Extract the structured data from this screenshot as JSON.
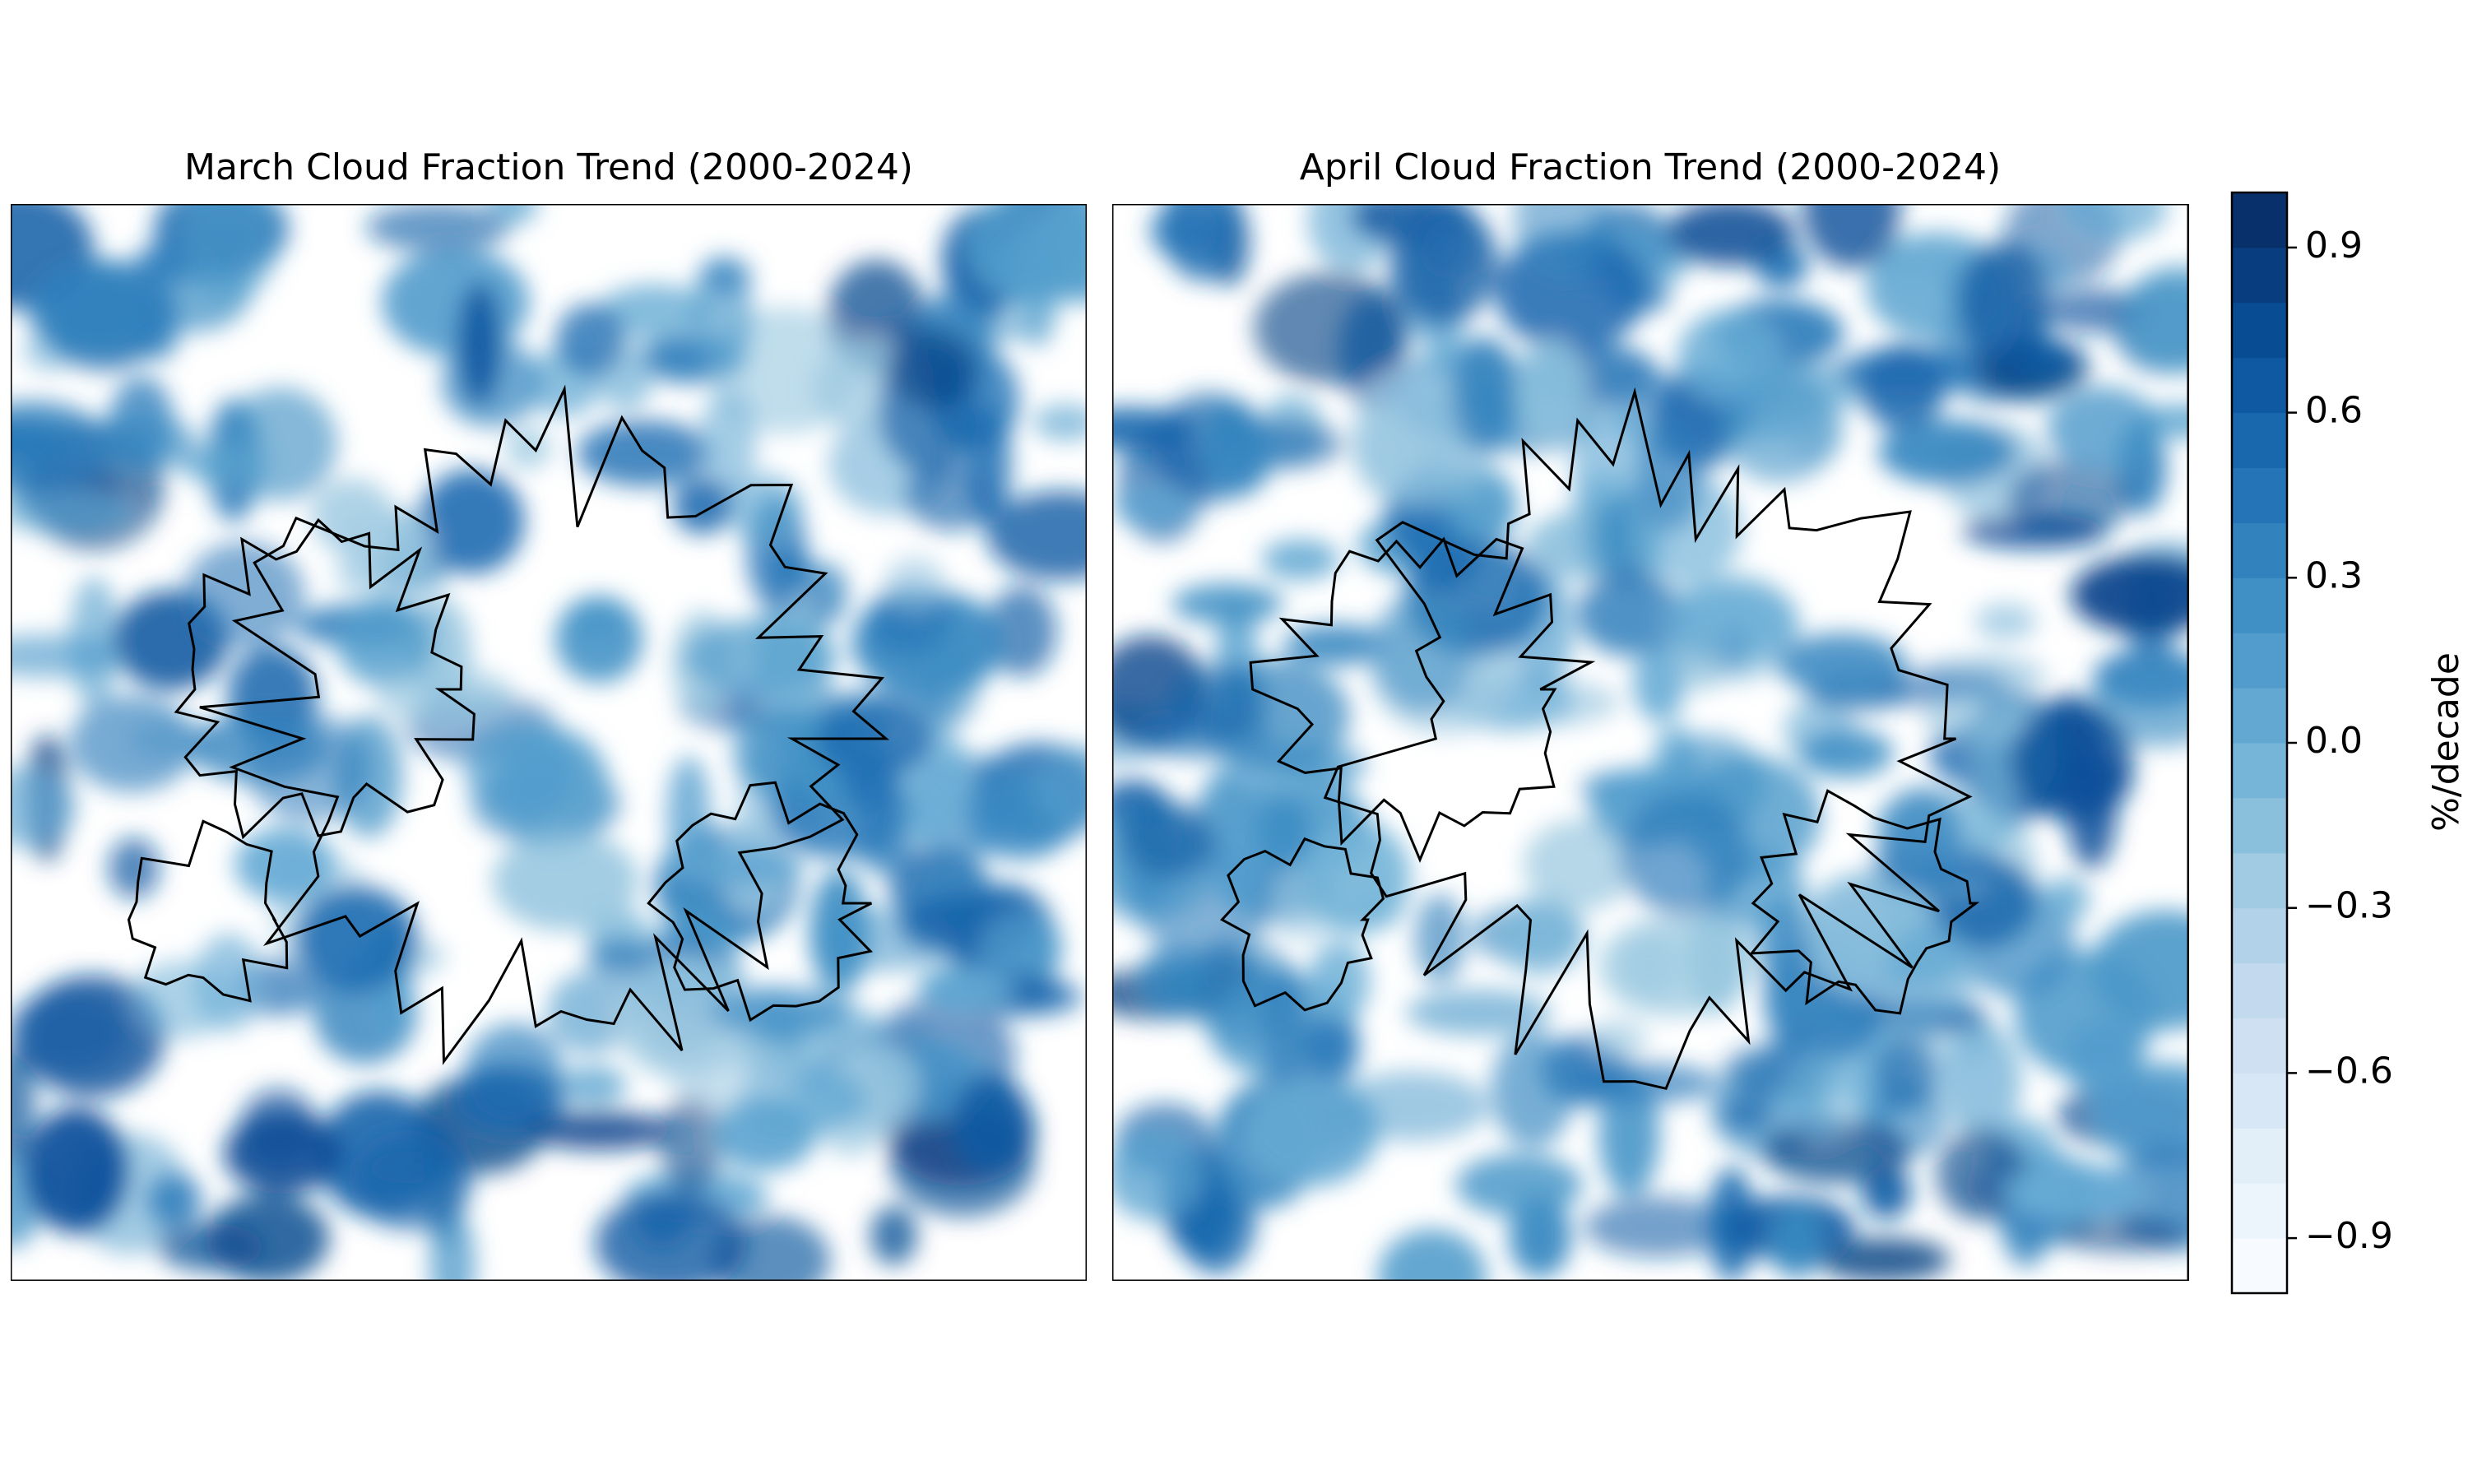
{
  "panels": [
    {
      "title": "March Cloud Fraction Trend (2000-2024)"
    },
    {
      "title": "April Cloud Fraction Trend (2000-2024)"
    }
  ],
  "colorbar": {
    "label": "%/decade",
    "lim": [
      -1,
      1
    ],
    "levels": 20,
    "cmap": [
      "#f7fbff",
      "#deebf7",
      "#c6dbef",
      "#9ecae1",
      "#6baed6",
      "#4292c6",
      "#2171b5",
      "#08519c",
      "#08306b"
    ],
    "ticks": [
      {
        "value": -0.9,
        "label": "−0.9"
      },
      {
        "value": -0.6,
        "label": "−0.6"
      },
      {
        "value": -0.3,
        "label": "−0.3"
      },
      {
        "value": 0.0,
        "label": "0.0"
      },
      0.3,
      0.6,
      0.9
    ]
  }
}
